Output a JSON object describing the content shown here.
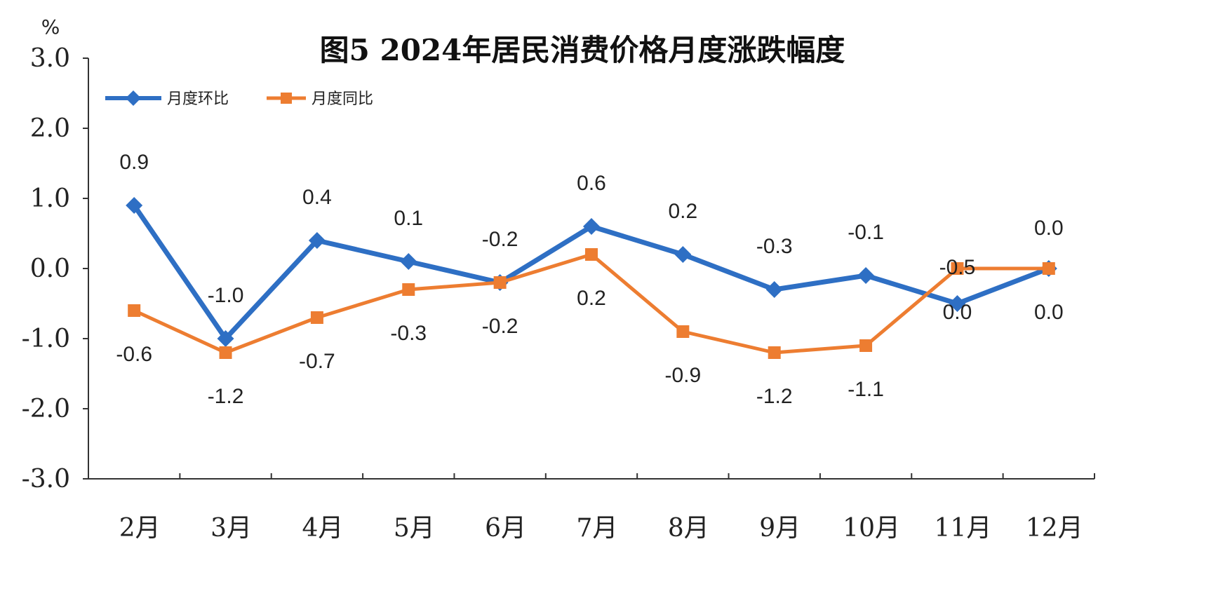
{
  "chart_data": {
    "type": "line",
    "title": "图5 2024年居民消费价格月度涨跌幅度",
    "unit": "%",
    "categories": [
      "2月",
      "3月",
      "4月",
      "5月",
      "6月",
      "7月",
      "8月",
      "9月",
      "10月",
      "11月",
      "12月"
    ],
    "ylim": [
      -3.0,
      3.0
    ],
    "yticks": [
      "3.0",
      "2.0",
      "1.0",
      "0.0",
      "-1.0",
      "-2.0",
      "-3.0"
    ],
    "ytick_values": [
      3,
      2,
      1,
      0,
      -1,
      -2,
      -3
    ],
    "grid": false,
    "legend_position": "top-left",
    "series": [
      {
        "name": "月度环比",
        "color": "#2e6fc4",
        "marker": "diamond",
        "values": [
          0.9,
          -1.0,
          0.4,
          0.1,
          -0.2,
          0.6,
          0.2,
          -0.3,
          -0.1,
          -0.5,
          0.0
        ],
        "labels": [
          "0.9",
          "-1.0",
          "0.4",
          "0.1",
          "-0.2",
          "0.6",
          "0.2",
          "-0.3",
          "-0.1",
          "-0.5",
          "0.0"
        ]
      },
      {
        "name": "月度同比",
        "color": "#ed7d31",
        "marker": "square",
        "values": [
          -0.6,
          -1.2,
          -0.7,
          -0.3,
          -0.2,
          0.2,
          -0.9,
          -1.2,
          -1.1,
          0.0,
          0.0
        ],
        "labels": [
          "-0.6",
          "-1.2",
          "-0.7",
          "-0.3",
          "-0.2",
          "0.2",
          "-0.9",
          "-1.2",
          "-1.1",
          "0.0",
          "0.0"
        ]
      }
    ]
  }
}
